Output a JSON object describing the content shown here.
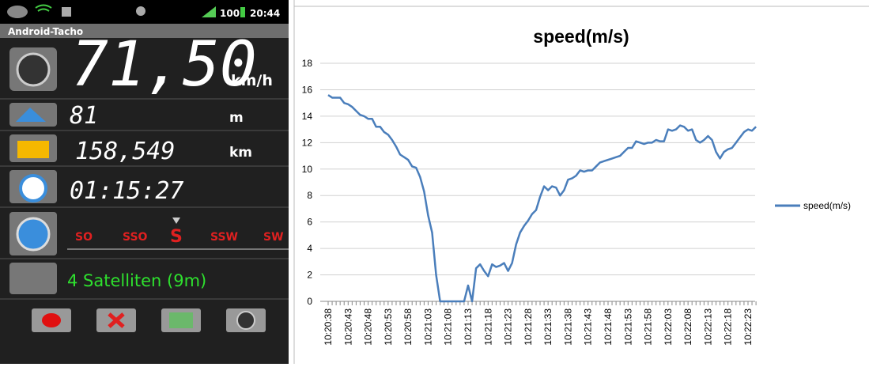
{
  "phone": {
    "status_battery": "100",
    "status_time": "20:44",
    "app_title": "Android-Tacho",
    "speed": "71,50",
    "speed_unit": "km/h",
    "altitude": "81",
    "altitude_unit": "m",
    "distance": "158,549",
    "distance_unit": "km",
    "time": "01:15:27",
    "compass": [
      "SO",
      "SSO",
      "S",
      "SSW",
      "SW"
    ],
    "satellites": "4 Satelliten (9m)"
  },
  "chart_data": {
    "type": "line",
    "title": "speed(m/s)",
    "categories": [
      "10:20:38",
      null,
      null,
      null,
      null,
      "10:20:43",
      null,
      null,
      null,
      null,
      "10:20:48",
      null,
      null,
      null,
      null,
      "10:20:53",
      null,
      null,
      null,
      null,
      "10:20:58",
      null,
      null,
      null,
      null,
      "10:21:03",
      null,
      null,
      null,
      null,
      "10:21:08",
      null,
      null,
      null,
      null,
      "10:21:13",
      null,
      null,
      null,
      null,
      "10:21:18",
      null,
      null,
      null,
      null,
      "10:21:23",
      null,
      null,
      null,
      null,
      "10:21:28",
      null,
      null,
      null,
      null,
      "10:21:33",
      null,
      null,
      null,
      null,
      "10:21:38",
      null,
      null,
      null,
      null,
      "10:21:43",
      null,
      null,
      null,
      null,
      "10:21:48",
      null,
      null,
      null,
      null,
      "10:21:53",
      null,
      null,
      null,
      null,
      "10:21:58",
      null,
      null,
      null,
      null,
      "10:22:03",
      null,
      null,
      null,
      null,
      "10:22:08",
      null,
      null,
      null,
      null,
      "10:22:13",
      null,
      null,
      null,
      null,
      "10:22:18",
      null,
      null,
      null,
      null,
      "10:22:23",
      null,
      null
    ],
    "series": [
      {
        "name": "speed(m/s)",
        "color": "#4a7ebb",
        "values": [
          15.6,
          15.4,
          15.4,
          15.4,
          15.0,
          14.9,
          14.7,
          14.4,
          14.1,
          14.0,
          13.8,
          13.8,
          13.2,
          13.2,
          12.8,
          12.6,
          12.2,
          11.7,
          11.1,
          10.9,
          10.7,
          10.2,
          10.1,
          9.4,
          8.3,
          6.5,
          5.2,
          2.0,
          0,
          0,
          0,
          0,
          0,
          0,
          0,
          1.2,
          0,
          2.5,
          2.8,
          2.3,
          1.9,
          2.8,
          2.6,
          2.7,
          2.9,
          2.3,
          2.9,
          4.3,
          5.2,
          5.7,
          6.1,
          6.6,
          6.9,
          7.9,
          8.7,
          8.4,
          8.7,
          8.6,
          8.0,
          8.4,
          9.2,
          9.3,
          9.5,
          9.9,
          9.8,
          9.9,
          9.9,
          10.2,
          10.5,
          10.6,
          10.7,
          10.8,
          10.9,
          11.0,
          11.3,
          11.6,
          11.6,
          12.1,
          12.0,
          11.9,
          12.0,
          12.0,
          12.2,
          12.1,
          12.1,
          13.0,
          12.9,
          13.0,
          13.3,
          13.2,
          12.9,
          13.0,
          12.2,
          12.0,
          12.2,
          12.5,
          12.2,
          11.3,
          10.8,
          11.3,
          11.5,
          11.6,
          12.0,
          12.4,
          12.8,
          13.0,
          12.9,
          13.2
        ]
      }
    ],
    "ylim": [
      0,
      18
    ],
    "yticks": [
      0,
      2,
      4,
      6,
      8,
      10,
      12,
      14,
      16,
      18
    ],
    "grid": true,
    "legend": "right"
  }
}
